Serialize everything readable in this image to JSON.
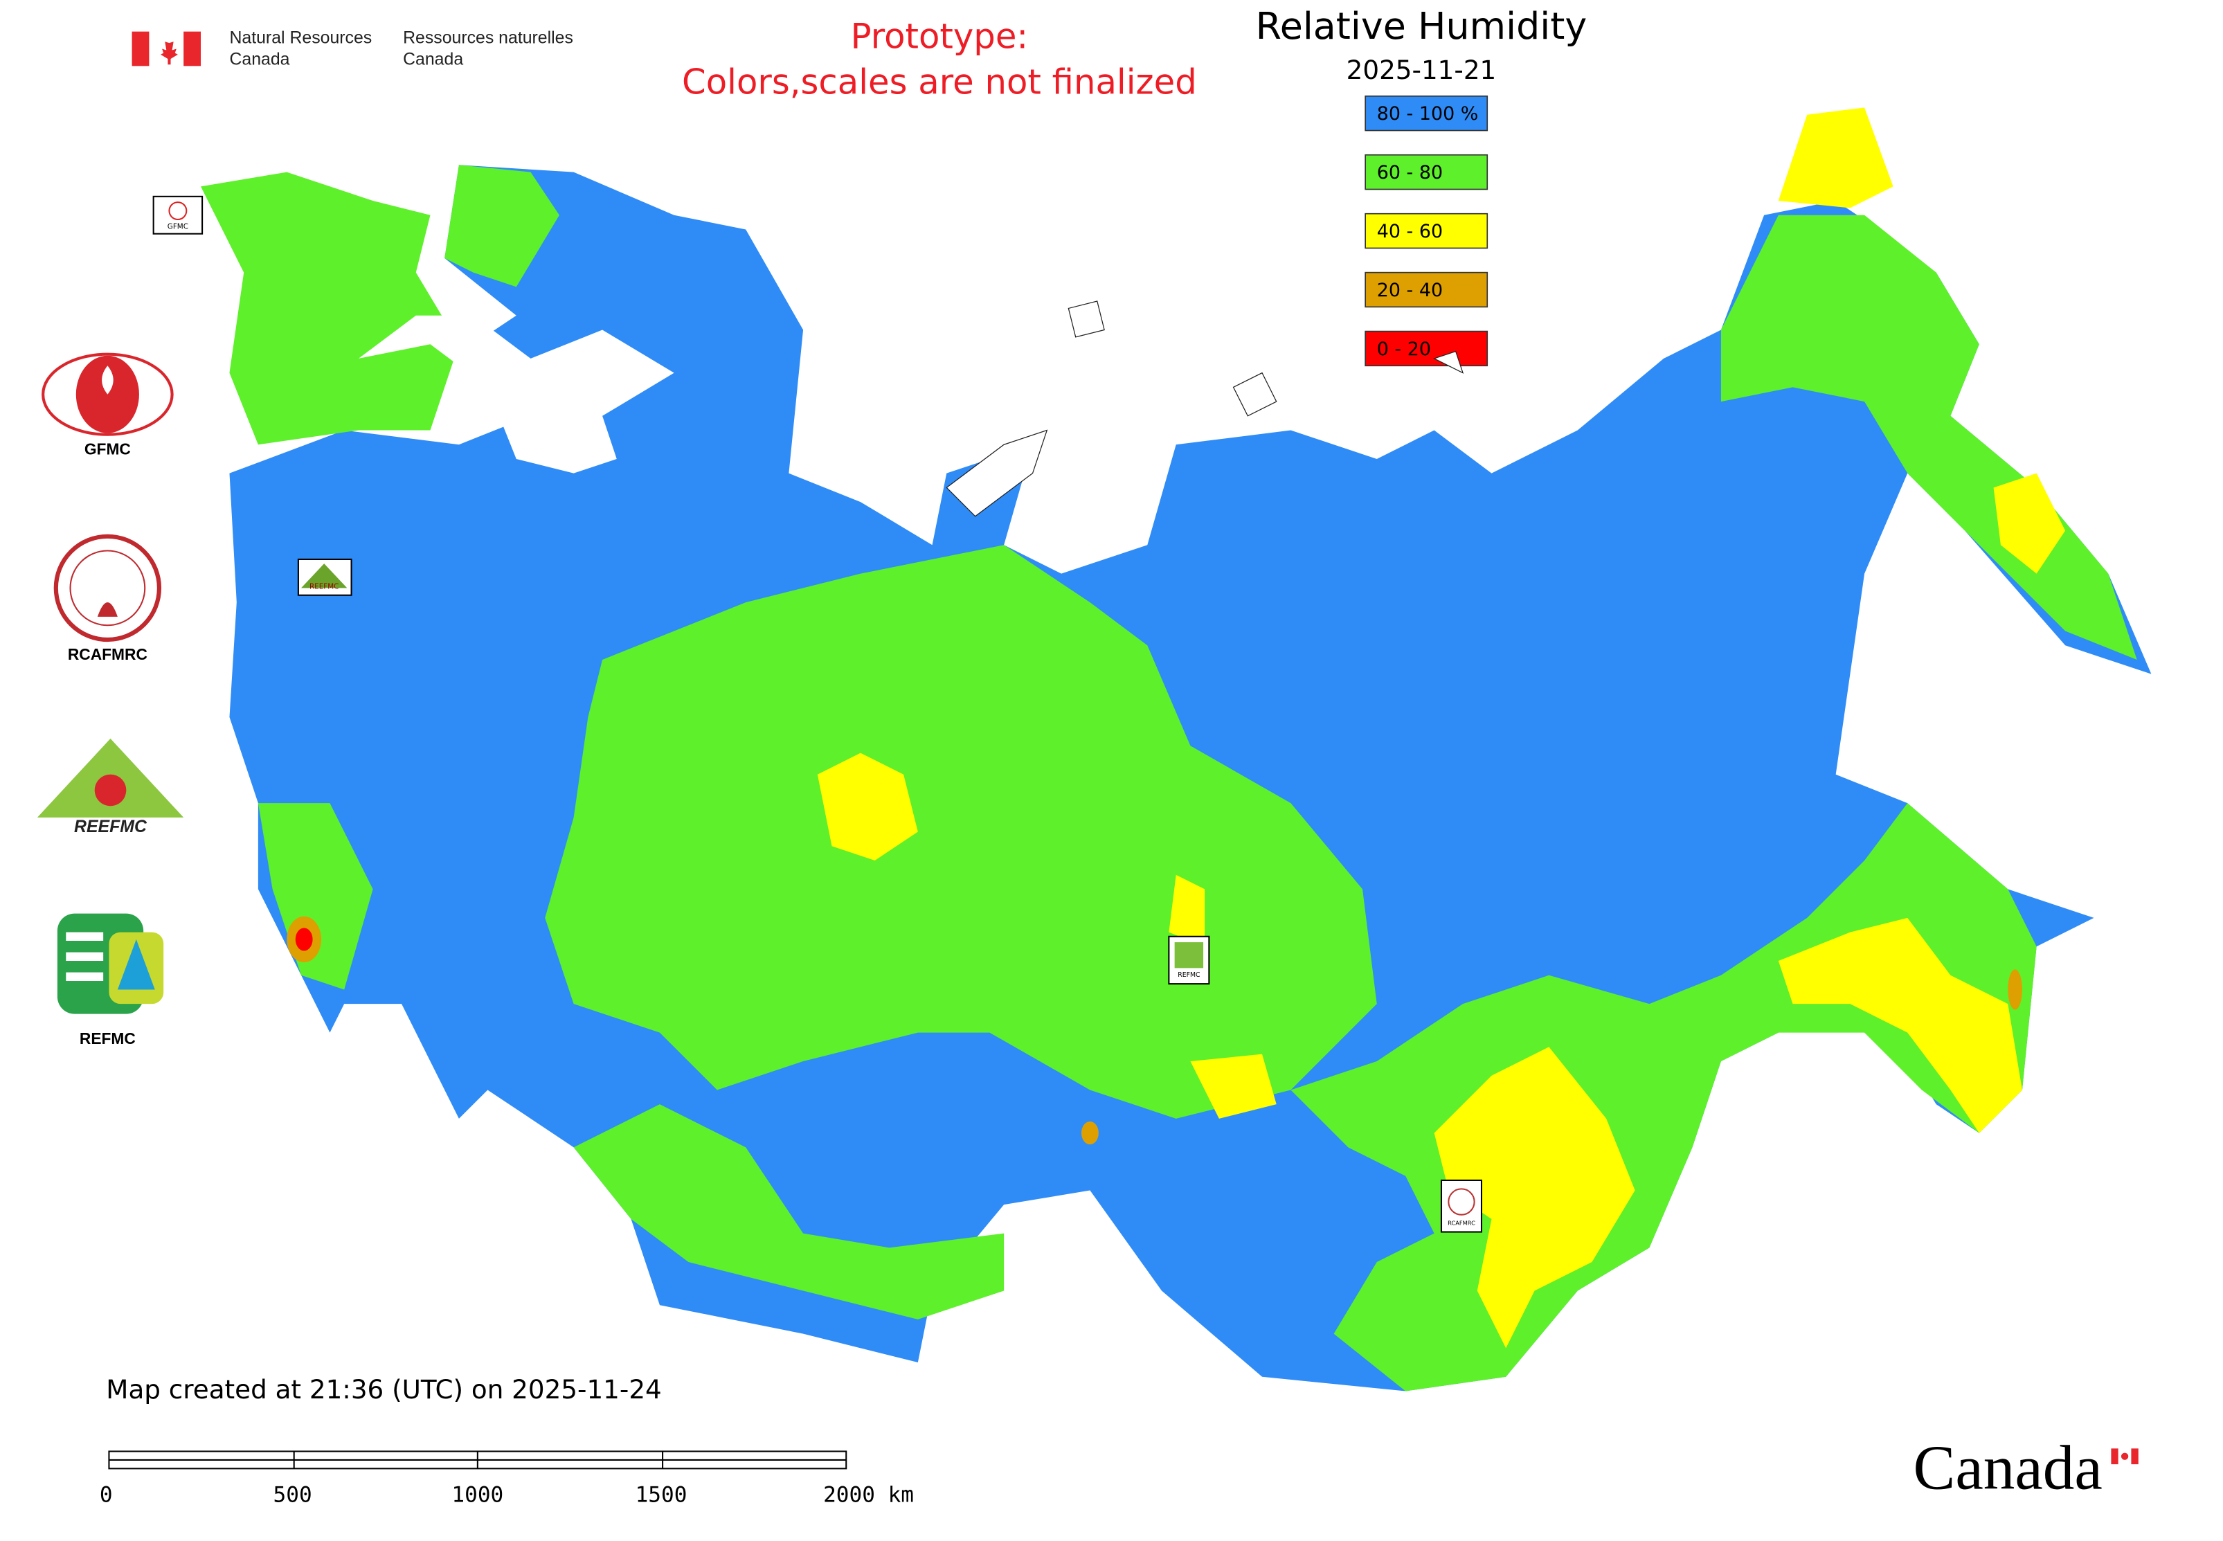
{
  "header": {
    "agency_en": [
      "Natural Resources",
      "Canada"
    ],
    "agency_fr": [
      "Ressources naturelles",
      "Canada"
    ]
  },
  "notice": [
    "Prototype:",
    "Colors,scales are not finalized"
  ],
  "title": "Relative Humidity",
  "date": "2025-11-21",
  "legend": [
    {
      "label": "80 - 100 %",
      "color": "#2f8cf7"
    },
    {
      "label": "60 - 80",
      "color": "#5ef02a"
    },
    {
      "label": "40 - 60",
      "color": "#ffff00"
    },
    {
      "label": "20 - 40",
      "color": "#dea000"
    },
    {
      "label": "0 - 20",
      "color": "#ff0000"
    }
  ],
  "logos": [
    "GFMC",
    "RCAFMRC",
    "REEFMC",
    "REFMC"
  ],
  "map_markers": [
    "GFMC",
    "REEFMC",
    "REFMC",
    "RCAFMRC"
  ],
  "footer": "Map created at 21:36 (UTC) on 2025-11-24",
  "scale_bar": [
    "0",
    "500",
    "1000",
    "1500",
    "2000 km"
  ],
  "wordmark": "Canada"
}
